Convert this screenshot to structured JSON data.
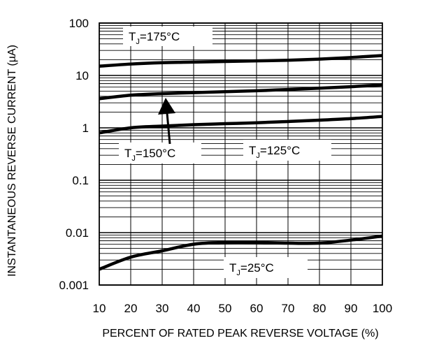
{
  "chart_data": {
    "type": "line",
    "xlabel": "PERCENT OF RATED PEAK REVERSE VOLTAGE (%)",
    "ylabel": "INSTANTANEOUS REVERSE CURRENT (µA)",
    "xlim": [
      10,
      100
    ],
    "ylim": [
      0.001,
      100
    ],
    "yscale": "log",
    "grid": true,
    "x_ticks": [
      10,
      20,
      30,
      40,
      50,
      60,
      70,
      80,
      90,
      100
    ],
    "x_tick_labels": [
      "10",
      "20",
      "30",
      "40",
      "50",
      "60",
      "70",
      "80",
      "90",
      "100"
    ],
    "y_ticks": [
      0.001,
      0.01,
      0.1,
      1,
      10,
      100
    ],
    "y_tick_labels": [
      "0.001",
      "0.01",
      "0.1",
      "1",
      "10",
      "100"
    ],
    "x": [
      10,
      20,
      30,
      40,
      50,
      60,
      70,
      80,
      90,
      100
    ],
    "series": [
      {
        "label_text": "=175°C",
        "values": [
          15,
          16.5,
          17.5,
          18,
          18.5,
          19,
          19.5,
          20.5,
          22,
          24
        ]
      },
      {
        "label_text": "=150°C",
        "values": [
          3.6,
          4.2,
          4.5,
          4.7,
          4.9,
          5.1,
          5.4,
          5.7,
          6.1,
          6.6
        ]
      },
      {
        "label_text": "=125°C",
        "values": [
          0.8,
          1.0,
          1.08,
          1.15,
          1.2,
          1.25,
          1.32,
          1.4,
          1.5,
          1.65
        ]
      },
      {
        "label_text": "=25°C",
        "values": [
          0.002,
          0.0034,
          0.0045,
          0.006,
          0.0065,
          0.0065,
          0.0063,
          0.0063,
          0.0072,
          0.0086
        ]
      }
    ],
    "annotation_prefix": "T",
    "annotation_subscript": "J"
  }
}
